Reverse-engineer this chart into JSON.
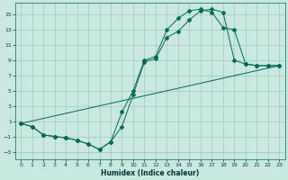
{
  "xlabel": "Humidex (Indice chaleur)",
  "bg_color": "#c8e8e0",
  "grid_color": "#a0c8c0",
  "line_color": "#006858",
  "xlim": [
    -0.5,
    23.5
  ],
  "ylim": [
    -4,
    16.5
  ],
  "xticks": [
    0,
    1,
    2,
    3,
    4,
    5,
    6,
    7,
    8,
    9,
    10,
    11,
    12,
    13,
    14,
    15,
    16,
    17,
    18,
    19,
    20,
    21,
    22,
    23
  ],
  "yticks": [
    -3,
    -1,
    1,
    3,
    5,
    7,
    9,
    11,
    13,
    15
  ],
  "curve_upper_x": [
    0,
    1,
    2,
    3,
    4,
    5,
    6,
    7,
    8,
    9,
    10,
    11,
    12,
    13,
    14,
    15,
    16,
    17,
    18,
    19,
    20,
    21,
    22,
    23
  ],
  "curve_upper_y": [
    0.7,
    0.3,
    -0.8,
    -1.0,
    -1.2,
    -1.5,
    -2.0,
    -2.7,
    -1.7,
    2.2,
    5.0,
    9.0,
    9.5,
    13.0,
    14.5,
    15.5,
    15.7,
    15.3,
    13.3,
    13.0,
    8.5,
    8.3,
    8.3,
    8.3
  ],
  "curve_lower_x": [
    0,
    1,
    2,
    3,
    4,
    5,
    6,
    7,
    8,
    9,
    10,
    11,
    12,
    13,
    14,
    15,
    16,
    17,
    18,
    19,
    20,
    21,
    22,
    23
  ],
  "curve_lower_y": [
    0.7,
    0.3,
    -0.8,
    -1.0,
    -1.2,
    -1.5,
    -2.0,
    -2.7,
    -1.7,
    0.3,
    4.5,
    8.8,
    9.2,
    12.0,
    12.8,
    14.3,
    15.5,
    15.7,
    15.3,
    9.0,
    8.5,
    8.3,
    8.3,
    8.3
  ],
  "line_x": [
    0,
    23
  ],
  "line_y": [
    0.7,
    8.3
  ]
}
